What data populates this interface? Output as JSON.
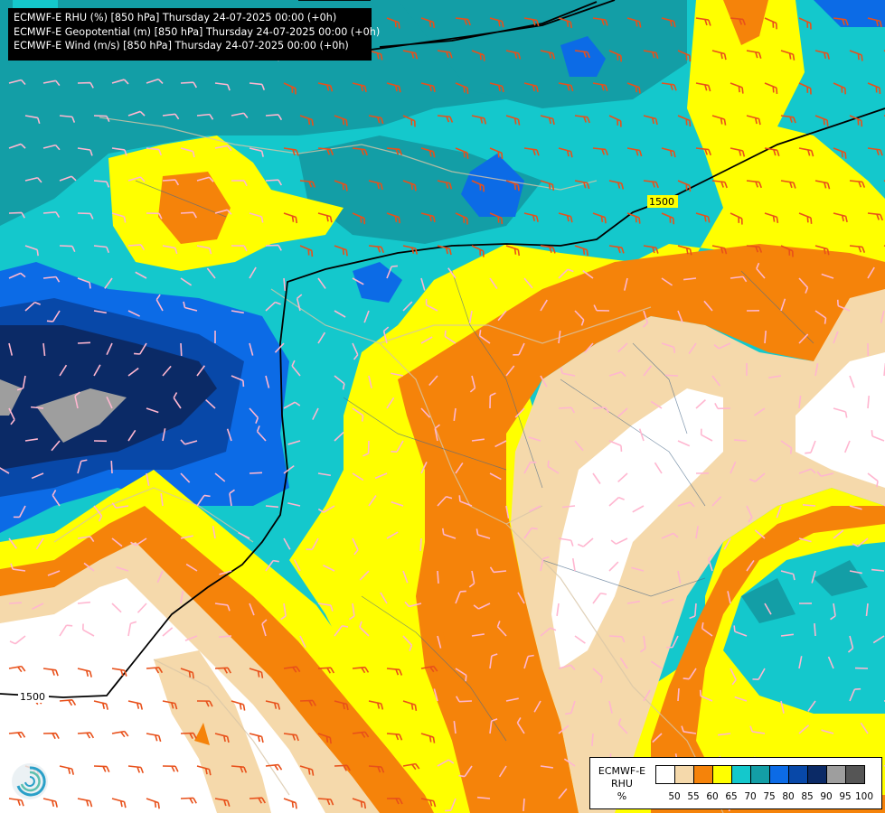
{
  "info_lines": [
    "ECMWF-E RHU (%) [850 hPa] Thursday 24-07-2025 00:00 (+0h)",
    "ECMWF-E Geopotential (m) [850 hPa] Thursday 24-07-2025 00:00 (+0h)",
    "ECMWF-E Wind (m/s) [850 hPa] Thursday 24-07-2025 00:00 (+0h)"
  ],
  "contour_labels": {
    "north": "1500",
    "southwest": "1500"
  },
  "legend": {
    "title_line1": "ECMWF-E",
    "title_line2": "RHU",
    "unit": "%",
    "ticks": [
      "50",
      "55",
      "60",
      "65",
      "70",
      "75",
      "80",
      "85",
      "90",
      "95",
      "100"
    ],
    "colors": [
      "#ffffff",
      "#f5d9ab",
      "#f5830a",
      "#ffff00",
      "#14c8cc",
      "#139ea6",
      "#0c6be6",
      "#0848a8",
      "#0b2a66",
      "#9e9e9e",
      "#555555"
    ]
  },
  "logo_icon": "ecmwf-swirl-icon"
}
